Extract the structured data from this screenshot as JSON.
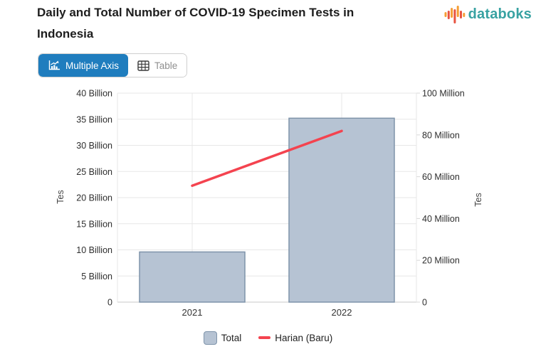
{
  "header": {
    "title": "Daily and Total Number of COVID-19 Specimen Tests in Indonesia",
    "brand": {
      "name": "databoks",
      "text_color": "#38a2a2",
      "icon_orange": "#f59e35",
      "icon_red": "#e85340"
    }
  },
  "toolbar": {
    "multiple_axis_label": "Multiple Axis",
    "table_label": "Table",
    "active_color": "#1f7dbe"
  },
  "chart_data": {
    "type": "bar",
    "subtype": "dual-axis bar+line",
    "categories": [
      "2021",
      "2022"
    ],
    "series": [
      {
        "name": "Total",
        "type": "bar",
        "axis": "left",
        "values": [
          9.6,
          35.2
        ],
        "unit": "Billion",
        "fill": "#b6c3d3",
        "border": "#7e93aa"
      },
      {
        "name": "Harian (Baru)",
        "type": "line",
        "axis": "right",
        "values": [
          55.7,
          81.9
        ],
        "unit": "Million",
        "color": "#f4434f"
      }
    ],
    "axes": {
      "left": {
        "title": "Tes",
        "min": 0,
        "max": 40,
        "step": 5,
        "tick_labels": [
          "0",
          "5 Billion",
          "10 Billion",
          "15 Billion",
          "20 Billion",
          "25 Billion",
          "30 Billion",
          "35 Billion",
          "40 Billion"
        ]
      },
      "right": {
        "title": "Tes",
        "min": 0,
        "max": 100,
        "step": 20,
        "tick_labels": [
          "0",
          "20 Million",
          "40 Million",
          "60 Million",
          "80 Million",
          "100 Million"
        ]
      }
    },
    "grid": true,
    "legend_position": "bottom"
  }
}
